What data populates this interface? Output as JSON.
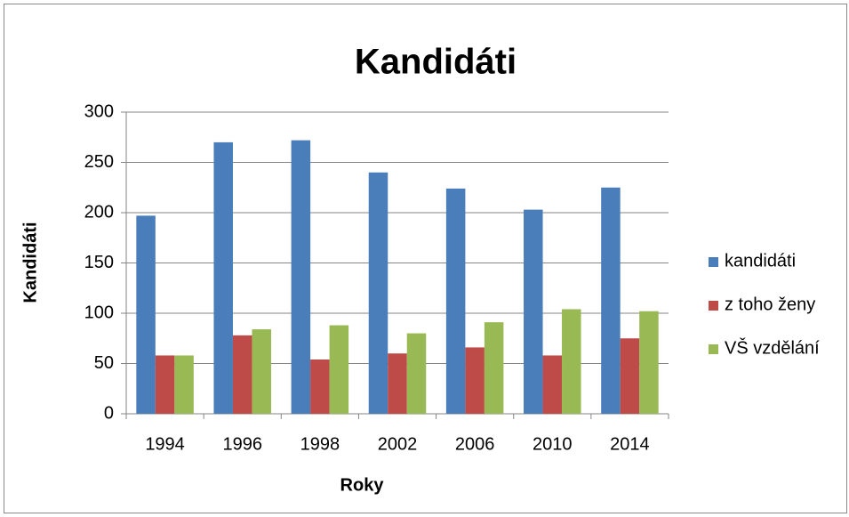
{
  "chart_data": {
    "type": "bar",
    "title": "Kandidáti",
    "x_label": "Roky",
    "y_label": "Kandidáti",
    "categories": [
      "1994",
      "1996",
      "1998",
      "2002",
      "2006",
      "2010",
      "2014"
    ],
    "series": [
      {
        "name": "kandidáti",
        "color": "#4a7ebb",
        "values": [
          197,
          270,
          272,
          240,
          224,
          203,
          225
        ]
      },
      {
        "name": "z toho ženy",
        "color": "#be4b48",
        "values": [
          58,
          78,
          54,
          60,
          66,
          58,
          75
        ]
      },
      {
        "name": "VŠ vzdělání",
        "color": "#98b954",
        "values": [
          58,
          84,
          88,
          80,
          91,
          104,
          102
        ]
      }
    ],
    "ylim": [
      0,
      300
    ],
    "yticks": [
      0,
      50,
      100,
      150,
      200,
      250,
      300
    ],
    "grid": true,
    "legend": "right"
  }
}
